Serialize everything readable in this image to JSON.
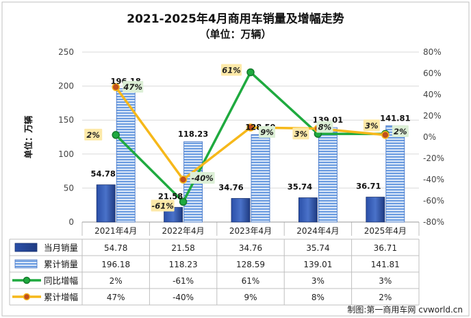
{
  "chart_data": {
    "type": "bar",
    "title": "2021-2025年4月商用车销量及增幅走势",
    "subtitle": "（单位：万辆）",
    "ylabel": "单位：万辆",
    "categories": [
      "2021年4月",
      "2022年4月",
      "2023年4月",
      "2024年4月",
      "2025年4月"
    ],
    "ylim": [
      0,
      250
    ],
    "y_ticks": [
      "0",
      "50",
      "100",
      "150",
      "200",
      "250"
    ],
    "y2lim": [
      -80,
      80
    ],
    "y2_ticks": [
      "-80%",
      "-60%",
      "-40%",
      "-20%",
      "0%",
      "20%",
      "40%",
      "60%",
      "80%"
    ],
    "grid": true,
    "legend_placement": "bottom-table",
    "series": [
      {
        "name": "当月销量",
        "kind": "bar",
        "axis": "left",
        "values": [
          54.78,
          21.58,
          34.76,
          35.74,
          36.71
        ],
        "labels": [
          "54.78",
          "21.58",
          "34.76",
          "35.74",
          "36.71"
        ],
        "color": "#1f3b82"
      },
      {
        "name": "累计销量",
        "kind": "bar",
        "axis": "left",
        "values": [
          196.18,
          118.23,
          128.59,
          139.01,
          141.81
        ],
        "labels": [
          "196.18",
          "118.23",
          "128.59",
          "139.01",
          "141.81"
        ],
        "color": "#6a9be0"
      },
      {
        "name": "同比增幅",
        "kind": "line",
        "axis": "right",
        "values": [
          2,
          -61,
          61,
          3,
          3
        ],
        "labels": [
          "2%",
          "-61%",
          "61%",
          "3%",
          "3%"
        ],
        "color": "#1faa3f",
        "tag_color": "#fde9a8"
      },
      {
        "name": "累计增幅",
        "kind": "line",
        "axis": "right",
        "values": [
          47,
          -40,
          9,
          8,
          2
        ],
        "labels": [
          "47%",
          "-40%",
          "9%",
          "8%",
          "2%"
        ],
        "color": "#f6b81a",
        "tag_color": "#dcefd6"
      }
    ],
    "credit": "制图:第一商用车网 cvworld.cn"
  }
}
